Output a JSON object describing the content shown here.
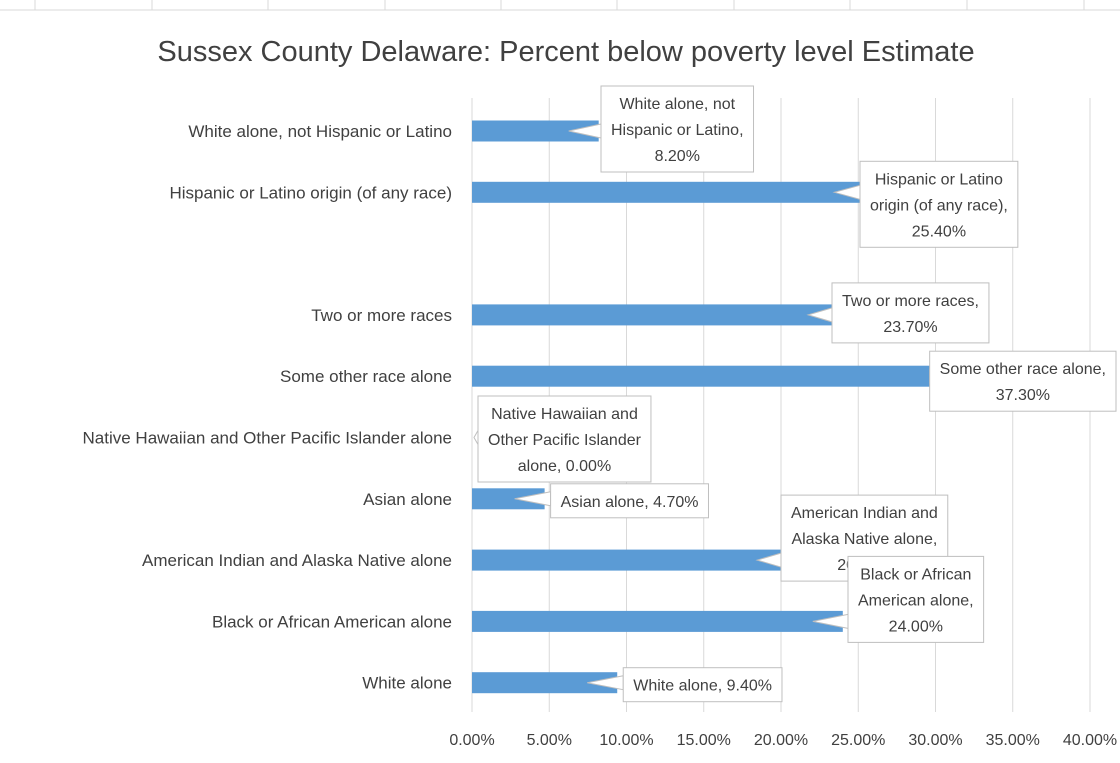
{
  "chart_data": {
    "type": "bar",
    "orientation": "horizontal",
    "title": "Sussex County Delaware: Percent below poverty level Estimate",
    "xlim": [
      0,
      40
    ],
    "x_ticks": [
      "0.00%",
      "5.00%",
      "10.00%",
      "15.00%",
      "20.00%",
      "25.00%",
      "30.00%",
      "35.00%",
      "40.00%"
    ],
    "grid": true,
    "legend": "none",
    "bar_color": "#5b9bd5",
    "categories": [
      "White alone, not Hispanic or Latino",
      "Hispanic or Latino origin (of any race)",
      "",
      "Two or more races",
      "Some other race alone",
      "Native Hawaiian and Other Pacific Islander alone",
      "Asian alone",
      "American Indian and Alaska Native alone",
      "Black or African American alone",
      "White alone"
    ],
    "values": [
      8.2,
      25.4,
      null,
      23.7,
      37.3,
      0.0,
      4.7,
      20.4,
      24.0,
      9.4
    ],
    "data_labels": [
      [
        "White alone, not",
        "Hispanic or Latino,",
        "8.20%"
      ],
      [
        "Hispanic or Latino",
        "origin (of any race),",
        "25.40%"
      ],
      [],
      [
        "Two or more races,",
        "23.70%"
      ],
      [
        "Some other race alone,",
        "37.30%"
      ],
      [
        "Native Hawaiian and",
        "Other Pacific Islander",
        "alone, 0.00%"
      ],
      [
        "Asian alone, 4.70%"
      ],
      [
        "American Indian and",
        "Alaska Native alone,",
        "20.40%"
      ],
      [
        "Black or African",
        "American alone,",
        "24.00%"
      ],
      [
        "White alone, 9.40%"
      ]
    ]
  }
}
